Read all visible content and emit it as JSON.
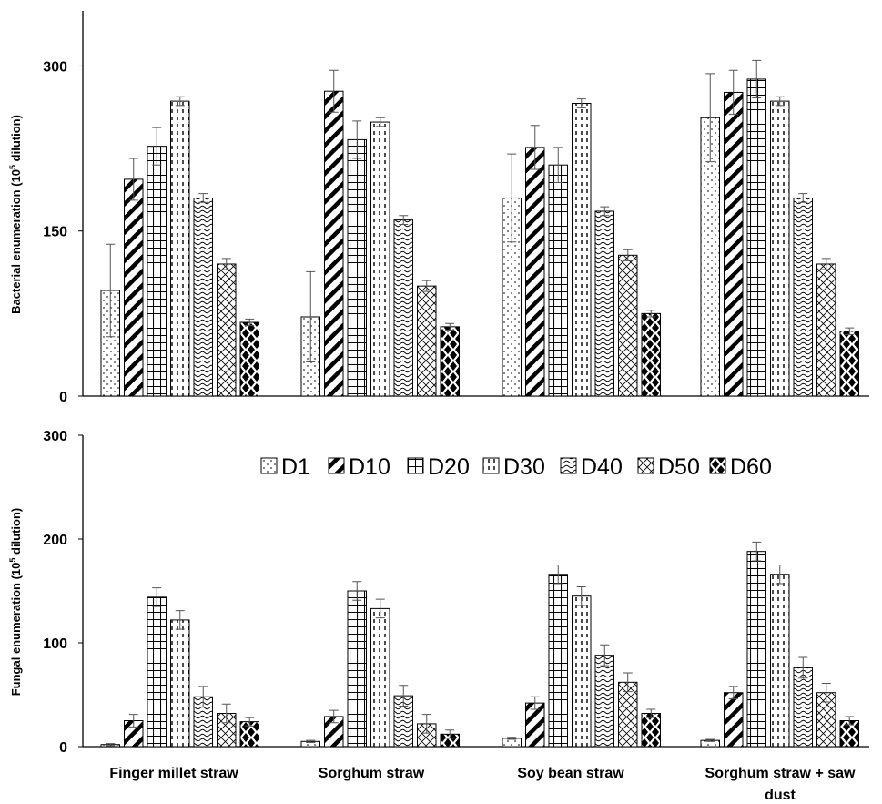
{
  "chart_data": [
    {
      "type": "bar",
      "ylabel_main": "Bacterial enumeration (10",
      "ylabel_sup": "5",
      "ylabel_tail": " dilution)",
      "ylim": [
        0,
        350
      ],
      "yticks": [
        0,
        150,
        300
      ],
      "categories": [
        "Finger millet straw",
        "Sorghum straw",
        "Soy bean straw",
        "Sorghum straw + saw dust"
      ],
      "series": [
        {
          "name": "D1",
          "values": [
            96,
            72,
            180,
            253
          ],
          "errors": [
            42,
            41,
            40,
            40
          ]
        },
        {
          "name": "D10",
          "values": [
            197,
            277,
            226,
            276
          ],
          "errors": [
            19,
            19,
            20,
            20
          ]
        },
        {
          "name": "D20",
          "values": [
            227,
            233,
            210,
            288
          ],
          "errors": [
            17,
            17,
            16,
            17
          ]
        },
        {
          "name": "D30",
          "values": [
            268,
            249,
            266,
            268
          ],
          "errors": [
            4,
            4,
            4,
            4
          ]
        },
        {
          "name": "D40",
          "values": [
            180,
            160,
            168,
            180
          ],
          "errors": [
            4,
            4,
            4,
            4
          ]
        },
        {
          "name": "D50",
          "values": [
            120,
            100,
            128,
            120
          ],
          "errors": [
            5,
            5,
            5,
            5
          ]
        },
        {
          "name": "D60",
          "values": [
            67,
            63,
            75,
            59
          ],
          "errors": [
            3,
            3,
            3,
            3
          ]
        }
      ],
      "grid": false
    },
    {
      "type": "bar",
      "ylabel_main": "Fungal enumeration (10",
      "ylabel_sup": "5",
      "ylabel_tail": " dilution)",
      "ylim": [
        0,
        300
      ],
      "yticks": [
        0,
        100,
        200,
        300
      ],
      "categories": [
        "Finger millet straw",
        "Sorghum straw",
        "Soy bean straw",
        "Sorghum straw + saw dust"
      ],
      "series": [
        {
          "name": "D1",
          "values": [
            2,
            5,
            8,
            6
          ],
          "errors": [
            1,
            1,
            1,
            1
          ]
        },
        {
          "name": "D10",
          "values": [
            25,
            29,
            42,
            52
          ],
          "errors": [
            6,
            6,
            6,
            6
          ]
        },
        {
          "name": "D20",
          "values": [
            144,
            150,
            166,
            188
          ],
          "errors": [
            9,
            9,
            9,
            9
          ]
        },
        {
          "name": "D30",
          "values": [
            122,
            133,
            145,
            166
          ],
          "errors": [
            9,
            9,
            9,
            9
          ]
        },
        {
          "name": "D40",
          "values": [
            48,
            49,
            88,
            76
          ],
          "errors": [
            10,
            10,
            10,
            10
          ]
        },
        {
          "name": "D50",
          "values": [
            32,
            22,
            62,
            52
          ],
          "errors": [
            9,
            9,
            9,
            9
          ]
        },
        {
          "name": "D60",
          "values": [
            24,
            12,
            32,
            25
          ],
          "errors": [
            4,
            4,
            4,
            4
          ]
        }
      ],
      "grid": false,
      "legend_position": "top"
    }
  ],
  "category_labels": [
    "Finger millet straw",
    "Sorghum straw",
    "Soy bean straw",
    "Sorghum straw + saw dust"
  ]
}
